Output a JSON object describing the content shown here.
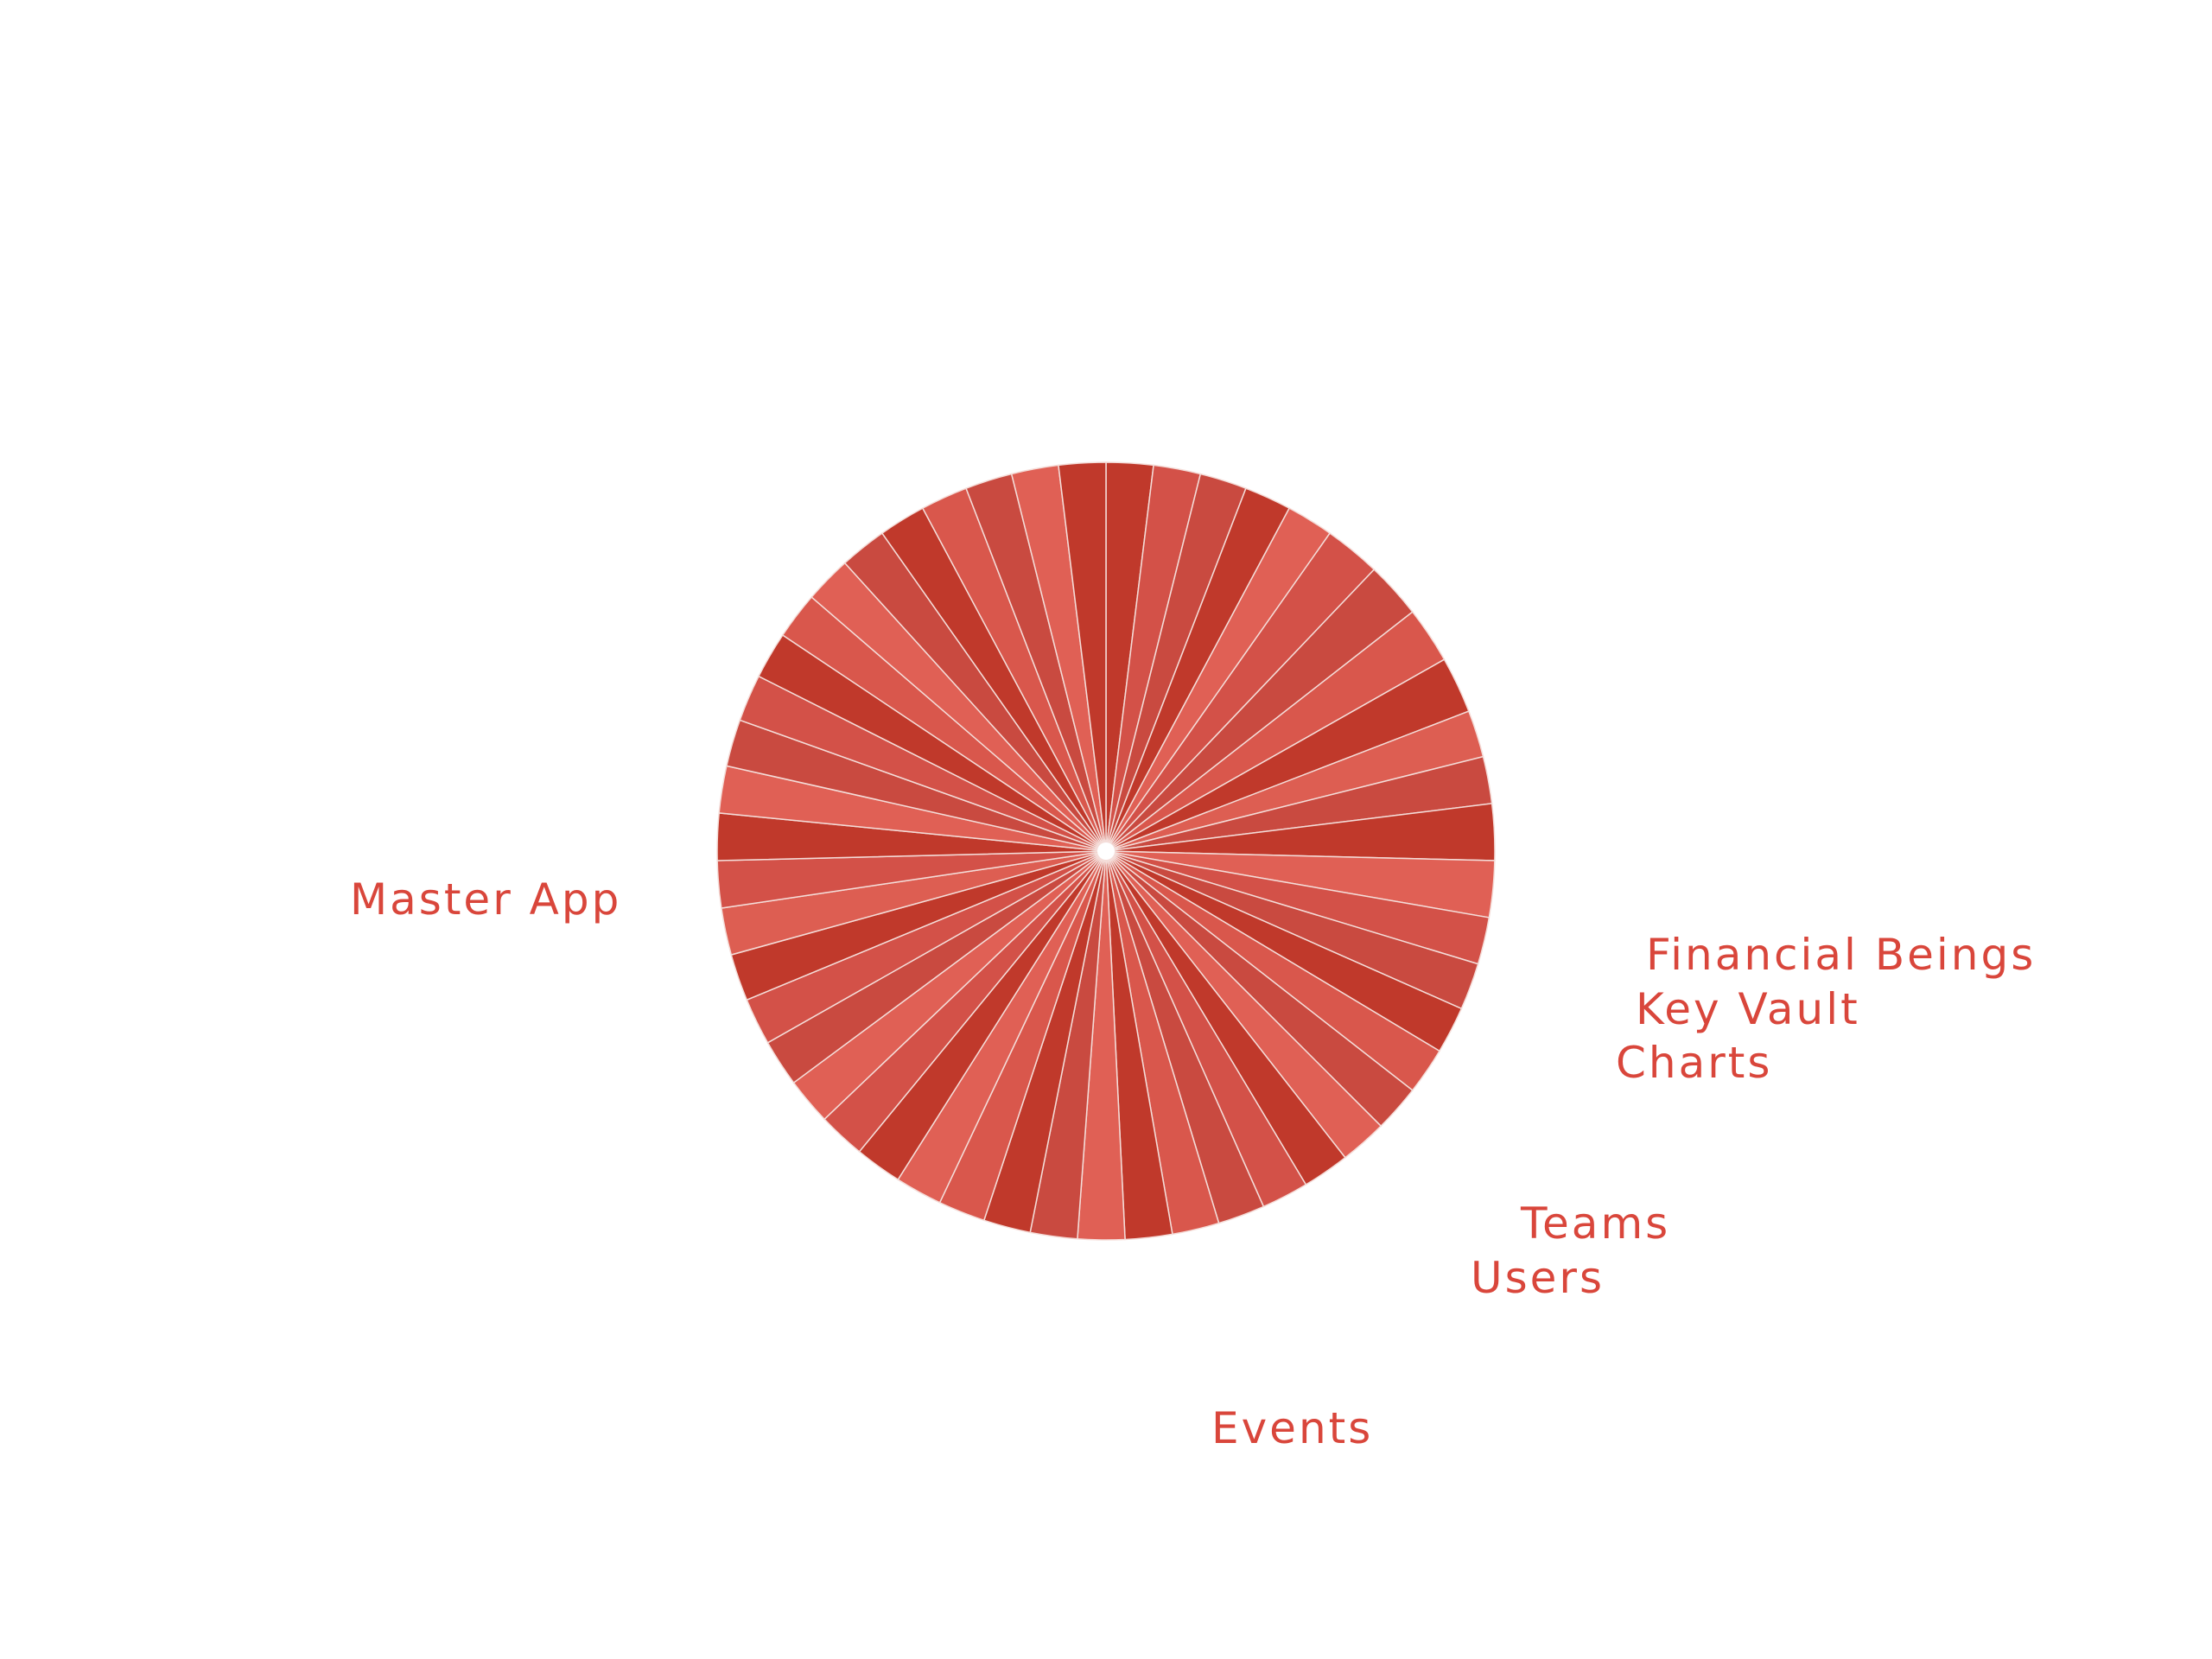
{
  "chart_data": {
    "type": "pie",
    "title": "",
    "slices": [
      {
        "label": "",
        "value": 1,
        "color": "#c0392b"
      },
      {
        "label": "",
        "value": 1,
        "color": "#d35148"
      },
      {
        "label": "",
        "value": 1,
        "color": "#c94a40"
      },
      {
        "label": "",
        "value": 1,
        "color": "#c0392b"
      },
      {
        "label": "",
        "value": 1,
        "color": "#e06055"
      },
      {
        "label": "",
        "value": 1.2,
        "color": "#d35148"
      },
      {
        "label": "",
        "value": 1.2,
        "color": "#c94a40"
      },
      {
        "label": "",
        "value": 1.2,
        "color": "#d9574c"
      },
      {
        "label": "",
        "value": 1.2,
        "color": "#c0392b"
      },
      {
        "label": "",
        "value": 1,
        "color": "#dd5e52"
      },
      {
        "label": "",
        "value": 1,
        "color": "#c94a40"
      },
      {
        "label": "",
        "value": 1.2,
        "color": "#c0392b"
      },
      {
        "label": "",
        "value": 1.2,
        "color": "#e06055"
      },
      {
        "label": "Financial Beings",
        "value": 1,
        "color": "#d35148"
      },
      {
        "label": "Key Vault",
        "value": 1,
        "color": "#c94a40"
      },
      {
        "label": "Charts",
        "value": 1,
        "color": "#c0392b"
      },
      {
        "label": "",
        "value": 1,
        "color": "#d9574c"
      },
      {
        "label": "",
        "value": 1,
        "color": "#c94a40"
      },
      {
        "label": "",
        "value": 1,
        "color": "#e06055"
      },
      {
        "label": "",
        "value": 1,
        "color": "#c0392b"
      },
      {
        "label": "Teams",
        "value": 1,
        "color": "#d35148"
      },
      {
        "label": "Users",
        "value": 1,
        "color": "#c94a40"
      },
      {
        "label": "",
        "value": 1,
        "color": "#d9574c"
      },
      {
        "label": "",
        "value": 1,
        "color": "#c0392b"
      },
      {
        "label": "",
        "value": 1,
        "color": "#e06055"
      },
      {
        "label": "Events",
        "value": 1,
        "color": "#c94a40"
      },
      {
        "label": "",
        "value": 1,
        "color": "#c0392b"
      },
      {
        "label": "",
        "value": 1,
        "color": "#d9574c"
      },
      {
        "label": "",
        "value": 1,
        "color": "#e06055"
      },
      {
        "label": "",
        "value": 1,
        "color": "#c0392b"
      },
      {
        "label": "",
        "value": 1,
        "color": "#d35148"
      },
      {
        "label": "",
        "value": 1,
        "color": "#e06055"
      },
      {
        "label": "",
        "value": 1,
        "color": "#c94a40"
      },
      {
        "label": "",
        "value": 1,
        "color": "#d35148"
      },
      {
        "label": "",
        "value": 1,
        "color": "#c0392b"
      },
      {
        "label": "",
        "value": 1,
        "color": "#dd5e52"
      },
      {
        "label": "",
        "value": 1,
        "color": "#d35148"
      },
      {
        "label": "",
        "value": 1,
        "color": "#c0392b"
      },
      {
        "label": "",
        "value": 1,
        "color": "#e06055"
      },
      {
        "label": "Master App",
        "value": 1,
        "color": "#c94a40"
      },
      {
        "label": "",
        "value": 1,
        "color": "#d35148"
      },
      {
        "label": "",
        "value": 1,
        "color": "#c0392b"
      },
      {
        "label": "",
        "value": 1,
        "color": "#d9574c"
      },
      {
        "label": "",
        "value": 1,
        "color": "#e06055"
      },
      {
        "label": "",
        "value": 1,
        "color": "#c94a40"
      },
      {
        "label": "",
        "value": 1,
        "color": "#c0392b"
      },
      {
        "label": "",
        "value": 1,
        "color": "#d9574c"
      },
      {
        "label": "",
        "value": 1,
        "color": "#c94a40"
      },
      {
        "label": "",
        "value": 1,
        "color": "#e06055"
      },
      {
        "label": "",
        "value": 1,
        "color": "#c0392b"
      }
    ],
    "legend": "none"
  }
}
